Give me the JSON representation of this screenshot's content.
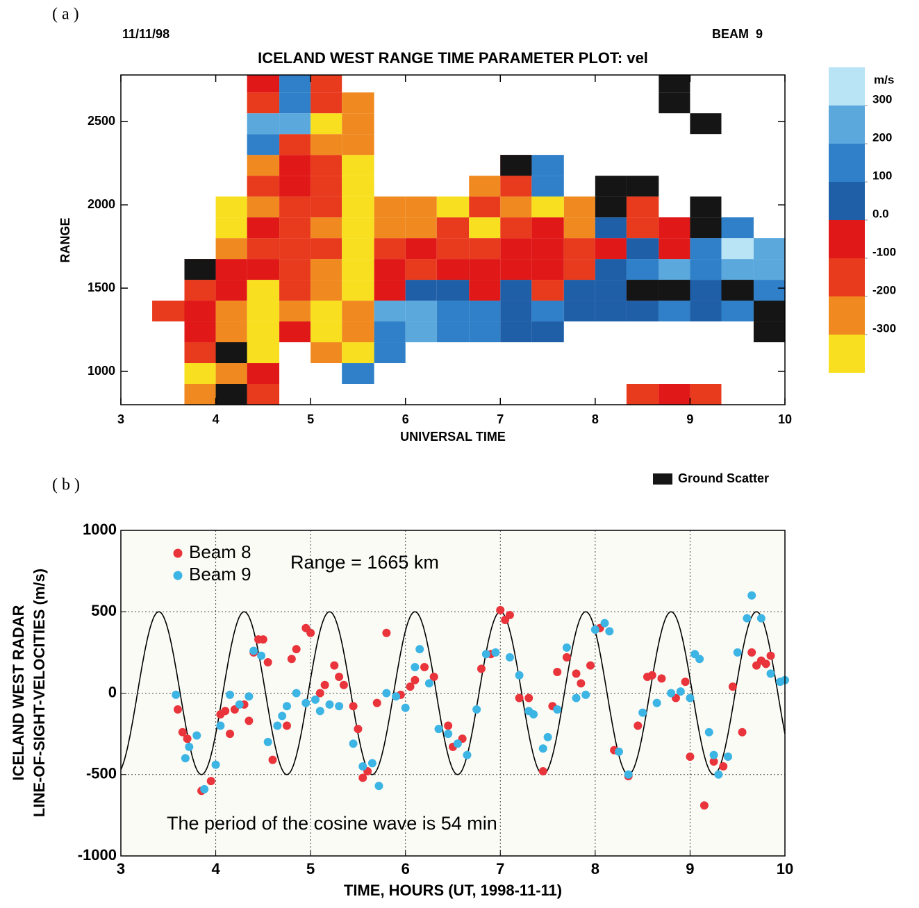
{
  "chart_data": [
    {
      "type": "heatmap",
      "panel_label": "( a )",
      "date": "11/11/98",
      "beam": "BEAM  9",
      "title": "ICELAND WEST RANGE TIME PARAMETER PLOT: vel",
      "x_label": "UNIVERSAL TIME",
      "y_label": "RANGE",
      "xlim": [
        3,
        10
      ],
      "ylim": [
        800,
        2780
      ],
      "xticks": [
        3,
        4,
        5,
        6,
        7,
        8,
        9,
        10
      ],
      "yticks": [
        1000,
        1500,
        2000,
        2500
      ],
      "xbins": [
        3,
        3.33,
        3.67,
        4,
        4.33,
        4.67,
        5,
        5.33,
        5.67,
        6,
        6.33,
        6.67,
        7,
        7.33,
        7.67,
        8,
        8.33,
        8.67,
        9,
        9.33,
        9.67,
        10
      ],
      "ybins": [
        800,
        925,
        1050,
        1175,
        1300,
        1425,
        1550,
        1675,
        1800,
        1925,
        2050,
        2175,
        2300,
        2425,
        2550,
        2675,
        2800
      ],
      "z": [
        [
          null,
          null,
          -250,
          -350,
          -150,
          null,
          null,
          null,
          null,
          null,
          null,
          null,
          null,
          null,
          null,
          null,
          -150,
          -100,
          -150,
          null,
          null
        ],
        [
          null,
          null,
          -350,
          -300,
          -100,
          null,
          null,
          150,
          null,
          null,
          null,
          null,
          null,
          null,
          null,
          null,
          null,
          null,
          null,
          null,
          null
        ],
        [
          null,
          null,
          -150,
          -200,
          -350,
          null,
          -300,
          -350,
          100,
          null,
          null,
          null,
          null,
          null,
          null,
          null,
          null,
          null,
          null,
          null,
          null
        ],
        [
          null,
          null,
          -100,
          -300,
          -350,
          -100,
          -350,
          -300,
          150,
          250,
          100,
          150,
          50,
          80,
          null,
          null,
          null,
          null,
          null,
          null,
          null
        ],
        [
          null,
          -150,
          -100,
          -300,
          -350,
          -250,
          -350,
          -300,
          250,
          200,
          150,
          120,
          50,
          100,
          60,
          80,
          50,
          120,
          80,
          150,
          null
        ],
        [
          null,
          null,
          -150,
          -100,
          -350,
          -200,
          -250,
          -350,
          -50,
          80,
          50,
          -100,
          60,
          -150,
          40,
          60,
          -50,
          80,
          50,
          200,
          120
        ],
        [
          null,
          null,
          -200,
          -50,
          -100,
          -200,
          -300,
          -350,
          -100,
          -150,
          -50,
          -100,
          -100,
          -50,
          -150,
          50,
          100,
          200,
          150,
          250,
          200
        ],
        [
          null,
          null,
          null,
          -250,
          -150,
          -150,
          -200,
          -350,
          -150,
          -100,
          -200,
          -150,
          -50,
          -100,
          -200,
          -100,
          50,
          -50,
          100,
          300,
          250
        ],
        [
          null,
          null,
          null,
          -350,
          -100,
          -150,
          -300,
          -350,
          -300,
          -300,
          -150,
          -350,
          -200,
          -100,
          -300,
          50,
          -150,
          -100,
          null,
          150,
          null
        ],
        [
          null,
          null,
          null,
          -350,
          -300,
          -150,
          -200,
          -350,
          -300,
          -250,
          -350,
          -200,
          -300,
          -350,
          -300,
          null,
          -150,
          null,
          null,
          null,
          null
        ],
        [
          null,
          null,
          null,
          null,
          -150,
          -100,
          -200,
          -350,
          null,
          null,
          null,
          -250,
          -200,
          100,
          null,
          null,
          null,
          null,
          null,
          null,
          null
        ],
        [
          null,
          null,
          null,
          null,
          -250,
          -100,
          -150,
          -350,
          null,
          null,
          null,
          null,
          -100,
          150,
          null,
          null,
          null,
          null,
          null,
          null,
          null
        ],
        [
          null,
          null,
          null,
          null,
          150,
          -150,
          -300,
          -300,
          null,
          null,
          null,
          null,
          null,
          null,
          null,
          null,
          null,
          null,
          null,
          null,
          null
        ],
        [
          null,
          null,
          null,
          null,
          200,
          250,
          -350,
          -250,
          null,
          null,
          null,
          null,
          null,
          null,
          null,
          null,
          null,
          null,
          null,
          null,
          null
        ],
        [
          null,
          null,
          null,
          null,
          -150,
          100,
          -200,
          -300,
          null,
          null,
          null,
          null,
          null,
          null,
          null,
          null,
          null,
          null,
          null,
          null,
          null
        ],
        [
          null,
          null,
          null,
          null,
          -100,
          150,
          -150,
          null,
          null,
          null,
          null,
          null,
          null,
          null,
          null,
          null,
          null,
          null,
          null,
          null,
          null
        ]
      ],
      "ground_scatter": [
        [
          0,
          3
        ],
        [
          2,
          3
        ],
        [
          6,
          2
        ],
        [
          5,
          16
        ],
        [
          5,
          17
        ],
        [
          4,
          20
        ],
        [
          3,
          20
        ],
        [
          5,
          19
        ],
        [
          9,
          15
        ],
        [
          8,
          18
        ],
        [
          10,
          16
        ],
        [
          11,
          12
        ],
        [
          15,
          17
        ],
        [
          14,
          17
        ],
        [
          13,
          18
        ],
        [
          10,
          15
        ],
        [
          9,
          18
        ]
      ],
      "ground_scatter_label": "Ground Scatter",
      "ground_scatter_color": "#151515",
      "colorbar": {
        "label": "m/s",
        "clim": [
          -400,
          400
        ],
        "ticks": [
          300,
          200,
          100,
          {
            "value": 0,
            "label": "0.0"
          },
          -100,
          -200,
          -300
        ],
        "colors": [
          "#f8e020",
          "#f08a20",
          "#e83a1c",
          "#e01818",
          "#1f5fa8",
          "#2f80c8",
          "#5aa8dc",
          "#b8e4f6"
        ]
      }
    },
    {
      "type": "scatter",
      "panel_label": "( b )",
      "x_label": "TIME, HOURS (UT, 1998-11-11)",
      "y_label": [
        "ICELAND WEST RADAR",
        "LINE-OF-SIGHT-VELOCITIES (m/s)"
      ],
      "annotation": "Range = 1665 km",
      "note": "The period of the cosine wave is 54 min",
      "xlim": [
        3,
        10
      ],
      "ylim": [
        -1000,
        1000
      ],
      "xticks": [
        3,
        4,
        5,
        6,
        7,
        8,
        9,
        10
      ],
      "yticks": [
        1000,
        500,
        0,
        -500,
        -1000
      ],
      "grid": true,
      "wave": {
        "amplitude": 500,
        "period_min": 54,
        "peak_x": 3.4,
        "color": "#000000"
      },
      "series": [
        {
          "name": "Beam 8",
          "color": "#e8343a",
          "x": [
            3.6,
            3.65,
            3.7,
            3.85,
            3.95,
            4.05,
            4.1,
            4.15,
            4.2,
            4.3,
            4.35,
            4.4,
            4.45,
            4.5,
            4.55,
            4.6,
            4.75,
            4.8,
            4.85,
            4.95,
            5.0,
            5.1,
            5.15,
            5.25,
            5.3,
            5.35,
            5.45,
            5.5,
            5.55,
            5.6,
            5.7,
            5.8,
            5.95,
            6.05,
            6.1,
            6.2,
            6.3,
            6.45,
            6.5,
            6.6,
            6.8,
            6.9,
            7.0,
            7.05,
            7.1,
            7.2,
            7.3,
            7.45,
            7.55,
            7.6,
            7.7,
            7.8,
            7.85,
            7.95,
            8.05,
            8.2,
            8.35,
            8.45,
            8.55,
            8.6,
            8.7,
            8.85,
            8.95,
            9.0,
            9.15,
            9.25,
            9.35,
            9.45,
            9.55,
            9.65,
            9.7,
            9.75,
            9.8,
            9.85
          ],
          "y": [
            -100,
            -240,
            -280,
            -600,
            -540,
            -130,
            -110,
            -250,
            -100,
            -70,
            -170,
            250,
            330,
            330,
            190,
            -410,
            -200,
            210,
            270,
            400,
            370,
            0,
            50,
            170,
            100,
            50,
            -80,
            -220,
            -520,
            -480,
            -60,
            370,
            -10,
            40,
            80,
            160,
            100,
            -200,
            -330,
            -280,
            150,
            240,
            510,
            450,
            480,
            -30,
            -30,
            -480,
            -80,
            130,
            220,
            120,
            60,
            170,
            400,
            -350,
            -510,
            -200,
            100,
            110,
            90,
            -30,
            70,
            -390,
            -690,
            -420,
            -450,
            40,
            -240,
            250,
            170,
            200,
            180,
            230
          ]
        },
        {
          "name": "Beam 9",
          "color": "#3cb4e4",
          "x": [
            3.58,
            3.68,
            3.72,
            3.8,
            3.88,
            4.0,
            4.05,
            4.15,
            4.25,
            4.35,
            4.4,
            4.48,
            4.55,
            4.65,
            4.7,
            4.75,
            4.85,
            4.95,
            5.05,
            5.1,
            5.2,
            5.3,
            5.45,
            5.55,
            5.65,
            5.72,
            5.8,
            5.9,
            6.0,
            6.1,
            6.15,
            6.25,
            6.35,
            6.45,
            6.55,
            6.65,
            6.75,
            6.85,
            6.95,
            7.1,
            7.2,
            7.3,
            7.35,
            7.45,
            7.5,
            7.6,
            7.7,
            7.8,
            7.9,
            8.0,
            8.1,
            8.15,
            8.25,
            8.35,
            8.5,
            8.65,
            8.8,
            8.9,
            9.0,
            9.05,
            9.1,
            9.2,
            9.25,
            9.3,
            9.4,
            9.5,
            9.6,
            9.65,
            9.75,
            9.85,
            9.95,
            10.0
          ],
          "y": [
            -10,
            -400,
            -330,
            -260,
            -590,
            -440,
            -200,
            -10,
            -70,
            -20,
            260,
            230,
            -300,
            -200,
            -140,
            -80,
            0,
            -60,
            -40,
            -110,
            -70,
            -80,
            -310,
            -450,
            -430,
            -570,
            0,
            -20,
            -90,
            160,
            270,
            60,
            -220,
            -250,
            -310,
            -380,
            -100,
            240,
            250,
            220,
            110,
            -110,
            -130,
            -340,
            -270,
            -100,
            280,
            -30,
            -10,
            390,
            430,
            380,
            -360,
            -500,
            -120,
            -60,
            0,
            10,
            -30,
            240,
            210,
            -240,
            -380,
            -500,
            -390,
            250,
            460,
            600,
            460,
            120,
            70,
            80
          ]
        }
      ]
    }
  ]
}
